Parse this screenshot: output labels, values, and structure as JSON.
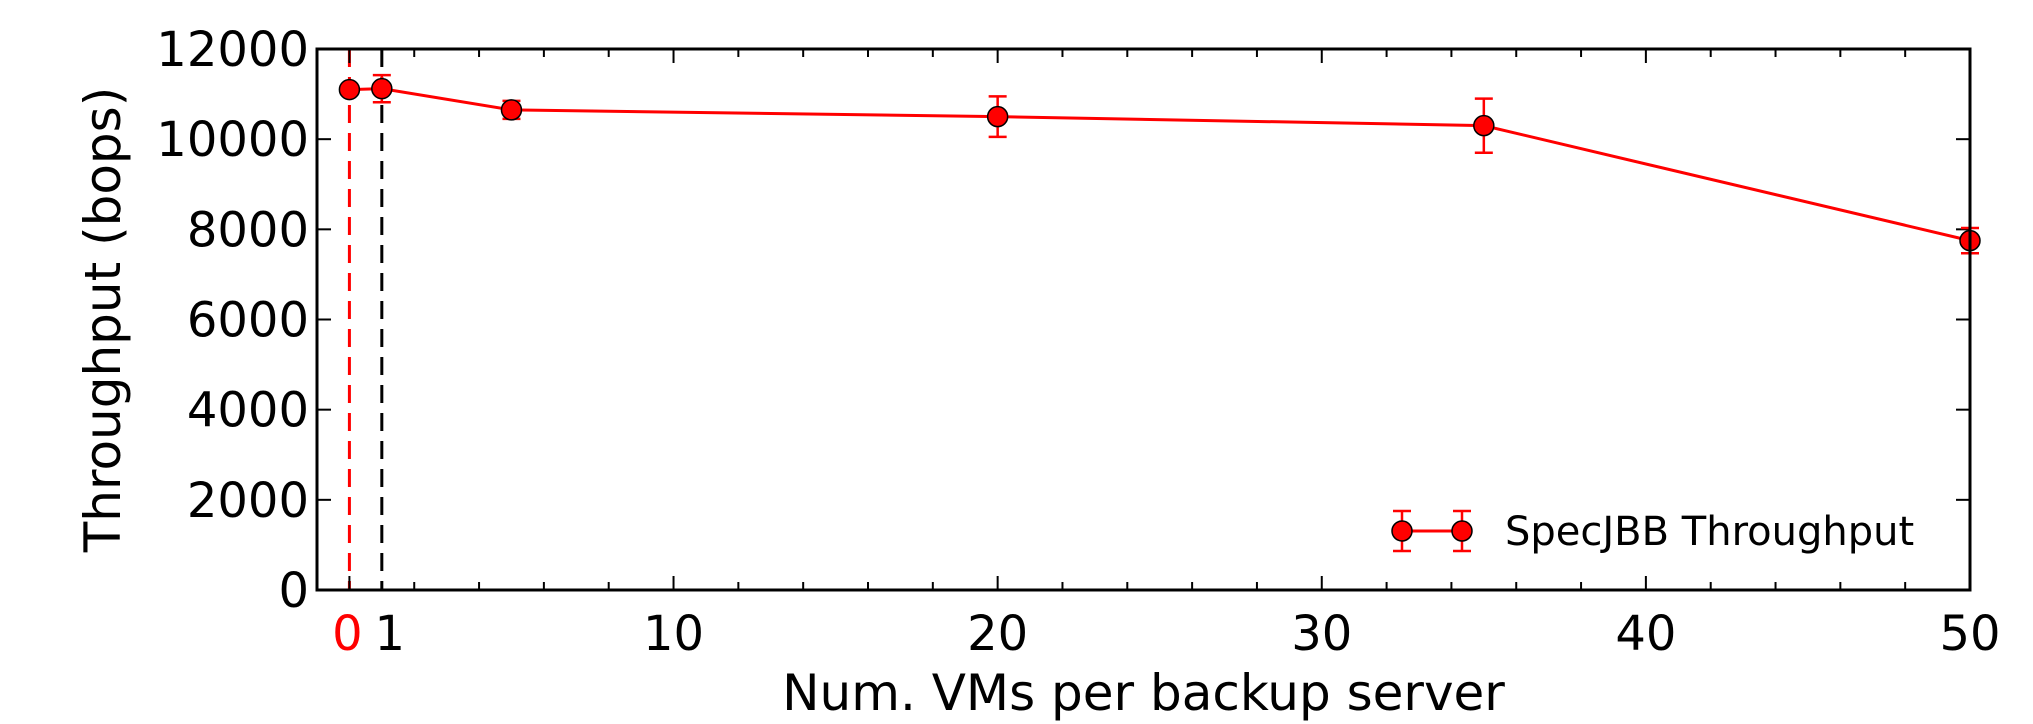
{
  "chart_data": {
    "type": "line",
    "xlabel": "Num. VMs per backup server",
    "ylabel": "Throughput (bops)",
    "xlim": [
      -1,
      50
    ],
    "ylim": [
      0,
      12000
    ],
    "x_ticks": [
      {
        "value": 0,
        "label": "0",
        "color": "#ff0000"
      },
      {
        "value": 1,
        "label": "1",
        "color": "#000000"
      },
      {
        "value": 10,
        "label": "10",
        "color": "#000000"
      },
      {
        "value": 20,
        "label": "20",
        "color": "#000000"
      },
      {
        "value": 30,
        "label": "30",
        "color": "#000000"
      },
      {
        "value": 40,
        "label": "40",
        "color": "#000000"
      },
      {
        "value": 50,
        "label": "50",
        "color": "#000000"
      }
    ],
    "y_ticks": [
      0,
      2000,
      4000,
      6000,
      8000,
      10000,
      12000
    ],
    "series": [
      {
        "name": "SpecJBB Throughput",
        "color": "#ff0000",
        "points": [
          {
            "x": 0,
            "y": 11100,
            "err": 0
          },
          {
            "x": 1,
            "y": 11120,
            "err": 300
          },
          {
            "x": 5,
            "y": 10650,
            "err": 200
          },
          {
            "x": 20,
            "y": 10500,
            "err": 450
          },
          {
            "x": 35,
            "y": 10300,
            "err": 600
          },
          {
            "x": 50,
            "y": 7750,
            "err": 280
          }
        ]
      }
    ],
    "reference_lines": [
      {
        "x": 0,
        "color": "#ff0000",
        "style": "dashed"
      },
      {
        "x": 1,
        "color": "#000000",
        "style": "dashed"
      }
    ],
    "legend": {
      "position": "bottom-right"
    },
    "grid": false
  }
}
